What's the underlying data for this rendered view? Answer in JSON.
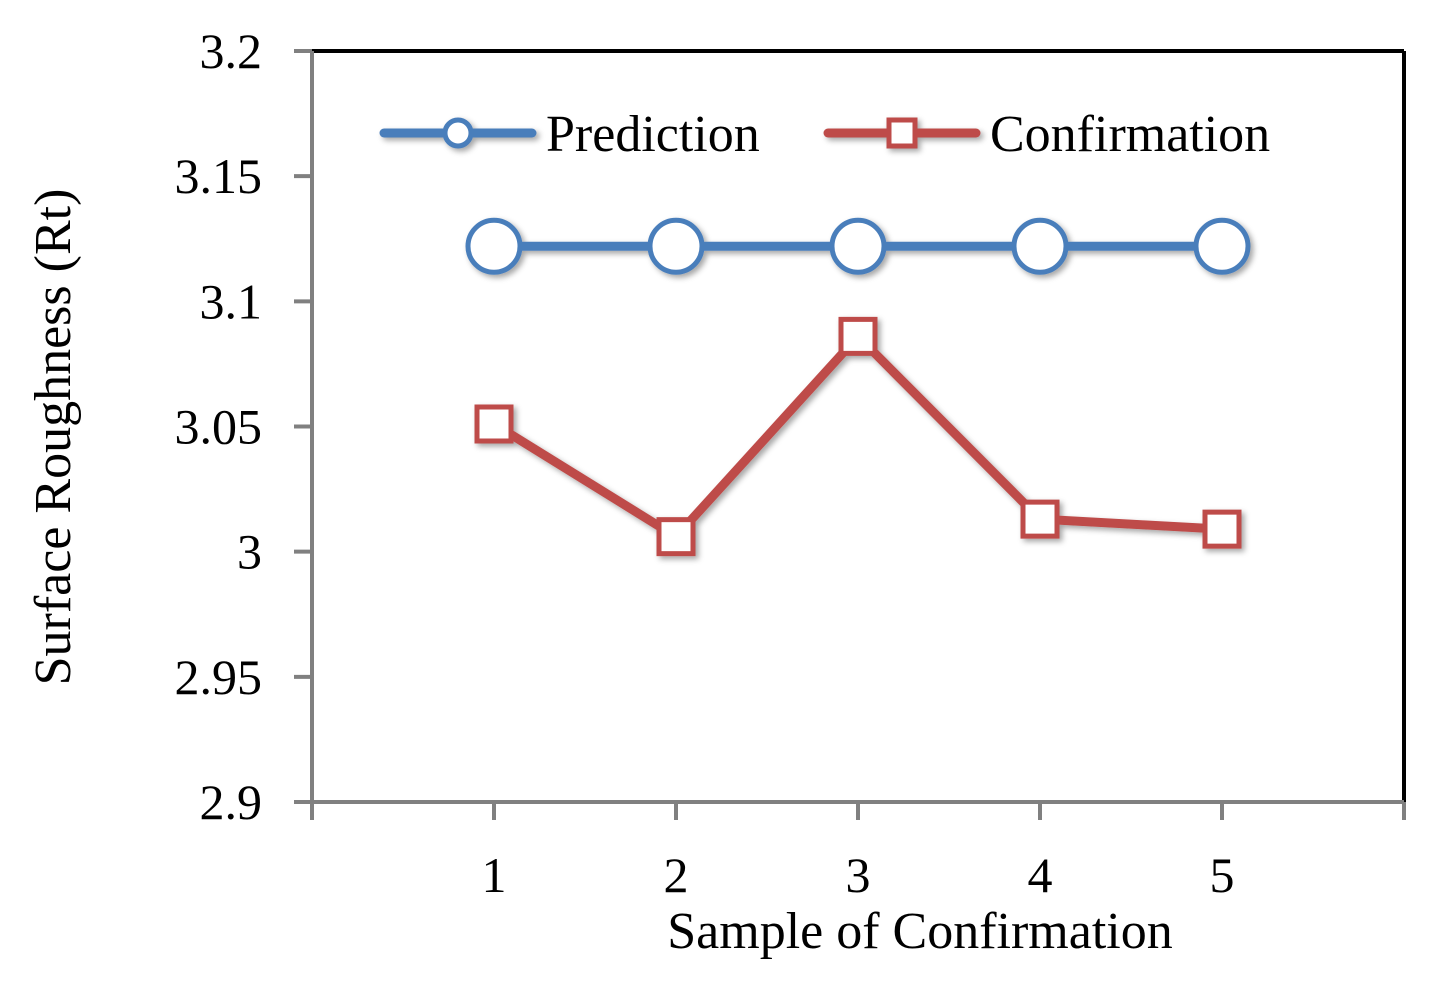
{
  "chart_data": {
    "type": "line",
    "categories": [
      "1",
      "2",
      "3",
      "4",
      "5"
    ],
    "ylim": [
      2.9,
      3.2
    ],
    "yticks": [
      "2.9",
      "2.95",
      "3",
      "3.05",
      "3.1",
      "3.15",
      "3.2"
    ],
    "xlabel": "Sample of  Confirmation",
    "ylabel": "Surface Roughness (Rt)",
    "grid": false,
    "legend_position": "top",
    "series": [
      {
        "name": "Prediction",
        "marker": "circle",
        "color": "#4a7ebb",
        "values": [
          3.122,
          3.122,
          3.122,
          3.122,
          3.122
        ]
      },
      {
        "name": "Confirmation",
        "marker": "square",
        "color": "#be4b48",
        "values": [
          3.051,
          3.006,
          3.086,
          3.013,
          3.009
        ]
      }
    ]
  }
}
